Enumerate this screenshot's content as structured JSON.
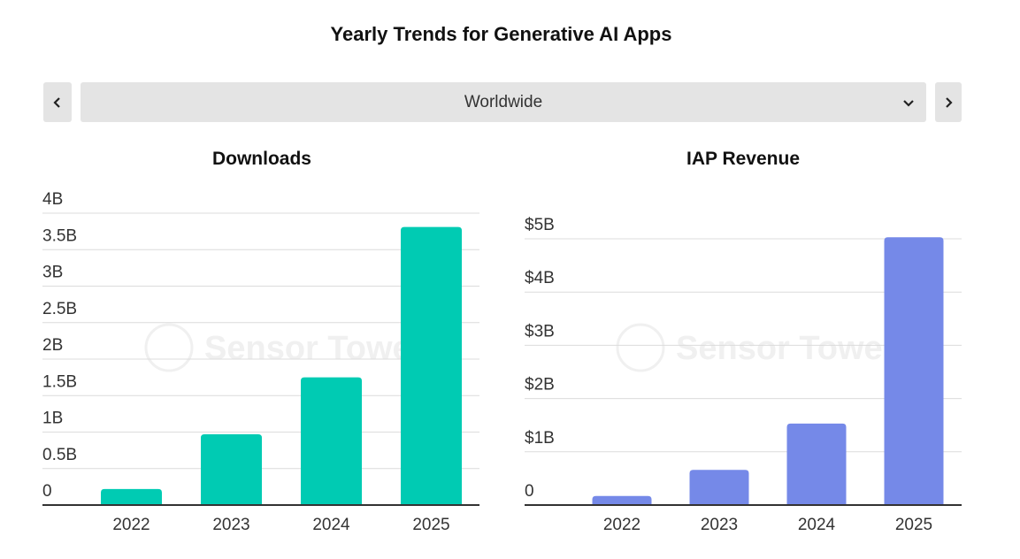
{
  "page": {
    "title": "Yearly Trends for Generative AI Apps",
    "region_select": {
      "value": "Worldwide"
    },
    "nav": {
      "prev_icon": "chevron-left-icon",
      "next_icon": "chevron-right-icon",
      "dropdown_icon": "chevron-down-icon"
    },
    "watermark": "Sensor Tower"
  },
  "chart_data": [
    {
      "type": "bar",
      "title": "Downloads",
      "categories": [
        "2022",
        "2023",
        "2024",
        "2025"
      ],
      "values": [
        0.22,
        0.97,
        1.75,
        3.81
      ],
      "unit": "B",
      "yticks": [
        0,
        0.5,
        1,
        1.5,
        2,
        2.5,
        3,
        3.5,
        4
      ],
      "ytick_labels": [
        "0",
        "0.5B",
        "1B",
        "1.5B",
        "2B",
        "2.5B",
        "3B",
        "3.5B",
        "4B"
      ],
      "ylim": [
        0,
        4
      ],
      "xlabel": "",
      "ylabel": "",
      "color": "#00cbb3",
      "grid": true,
      "legend": "none"
    },
    {
      "type": "bar",
      "title": "IAP Revenue",
      "categories": [
        "2022",
        "2023",
        "2024",
        "2025"
      ],
      "values": [
        0.17,
        0.66,
        1.53,
        5.03
      ],
      "unit": "$B",
      "yticks": [
        0,
        1,
        2,
        3,
        4,
        5
      ],
      "ytick_labels": [
        "0",
        "$1B",
        "$2B",
        "$3B",
        "$4B",
        "$5B"
      ],
      "ylim": [
        0,
        5
      ],
      "xlabel": "",
      "ylabel": "",
      "color": "#7589e8",
      "grid": true,
      "legend": "none"
    }
  ]
}
